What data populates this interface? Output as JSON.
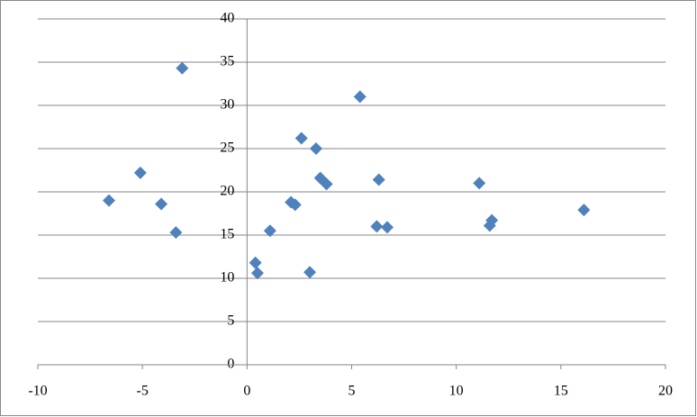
{
  "chart_data": {
    "type": "scatter",
    "color": "#4f81bd",
    "grid": true,
    "x": [
      -6.6,
      -5.1,
      -4.1,
      -3.4,
      -3.1,
      0.4,
      0.5,
      1.1,
      2.1,
      2.3,
      2.6,
      3.0,
      3.3,
      3.5,
      3.8,
      5.4,
      6.2,
      6.3,
      6.7,
      11.1,
      11.6,
      11.7,
      16.1
    ],
    "values": [
      19.0,
      22.2,
      18.6,
      15.3,
      34.3,
      11.8,
      10.6,
      15.5,
      18.8,
      18.5,
      26.2,
      10.7,
      25.0,
      21.6,
      20.9,
      31.0,
      16.0,
      21.4,
      15.9,
      21.0,
      16.1,
      16.7,
      17.9
    ],
    "xlim": [
      -10,
      20
    ],
    "xticks": [
      -10,
      -5,
      0,
      5,
      10,
      15,
      20
    ],
    "ylim": [
      0,
      40
    ],
    "yticks": [
      0,
      5,
      10,
      15,
      20,
      25,
      30,
      35,
      40
    ]
  }
}
